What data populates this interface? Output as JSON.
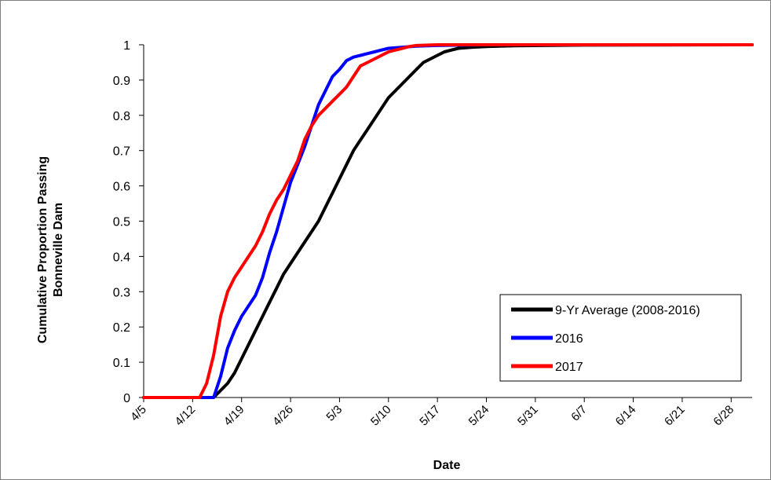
{
  "chart_data": {
    "type": "line",
    "xlabel": "Date",
    "ylabel_lines": [
      "Cumulative Proportion Passing",
      "Bonneville Dam"
    ],
    "x_tick_labels": [
      "4/5",
      "4/12",
      "4/19",
      "4/26",
      "5/3",
      "5/10",
      "5/17",
      "5/24",
      "5/31",
      "6/7",
      "6/14",
      "6/21",
      "6/28"
    ],
    "xlim": [
      "4/5",
      "7/1"
    ],
    "y_ticks": [
      "0",
      "0.1",
      "0.2",
      "0.3",
      "0.4",
      "0.5",
      "0.6",
      "0.7",
      "0.8",
      "0.9",
      "1"
    ],
    "ylim": [
      0,
      1
    ],
    "grid": false,
    "legend_position": "bottom-right",
    "series": [
      {
        "name": "9-Yr Average (2008-2016)",
        "color": "#000000",
        "x": [
          "4/5",
          "4/15",
          "4/16",
          "4/17",
          "4/18",
          "4/19",
          "4/20",
          "4/21",
          "4/22",
          "4/23",
          "4/24",
          "4/25",
          "4/26",
          "4/27",
          "4/28",
          "4/29",
          "4/30",
          "5/1",
          "5/2",
          "5/3",
          "5/4",
          "5/5",
          "5/6",
          "5/7",
          "5/8",
          "5/9",
          "5/10",
          "5/11",
          "5/12",
          "5/13",
          "5/14",
          "5/15",
          "5/16",
          "5/17",
          "5/18",
          "5/19",
          "5/20",
          "5/22",
          "5/24",
          "5/28",
          "6/7",
          "7/1"
        ],
        "y": [
          0,
          0,
          0.02,
          0.04,
          0.07,
          0.11,
          0.15,
          0.19,
          0.23,
          0.27,
          0.31,
          0.35,
          0.38,
          0.41,
          0.44,
          0.47,
          0.5,
          0.54,
          0.58,
          0.62,
          0.66,
          0.7,
          0.73,
          0.76,
          0.79,
          0.82,
          0.85,
          0.87,
          0.89,
          0.91,
          0.93,
          0.95,
          0.96,
          0.97,
          0.98,
          0.985,
          0.99,
          0.993,
          0.995,
          0.997,
          0.999,
          1
        ]
      },
      {
        "name": "2016",
        "color": "#0000ff",
        "x": [
          "4/5",
          "4/15",
          "4/16",
          "4/17",
          "4/18",
          "4/19",
          "4/20",
          "4/21",
          "4/22",
          "4/23",
          "4/24",
          "4/25",
          "4/26",
          "4/27",
          "4/28",
          "4/29",
          "4/30",
          "5/1",
          "5/2",
          "5/3",
          "5/4",
          "5/5",
          "5/6",
          "5/7",
          "5/8",
          "5/9",
          "5/10",
          "5/12",
          "5/14",
          "5/17",
          "5/24",
          "7/1"
        ],
        "y": [
          0,
          0,
          0.06,
          0.14,
          0.19,
          0.23,
          0.26,
          0.29,
          0.34,
          0.41,
          0.47,
          0.54,
          0.61,
          0.66,
          0.71,
          0.77,
          0.83,
          0.87,
          0.91,
          0.93,
          0.955,
          0.965,
          0.97,
          0.975,
          0.98,
          0.985,
          0.99,
          0.993,
          0.996,
          0.998,
          1,
          1
        ]
      },
      {
        "name": "2017",
        "color": "#ff0000",
        "x": [
          "4/5",
          "4/13",
          "4/14",
          "4/15",
          "4/16",
          "4/17",
          "4/18",
          "4/19",
          "4/20",
          "4/21",
          "4/22",
          "4/23",
          "4/24",
          "4/25",
          "4/26",
          "4/27",
          "4/28",
          "4/29",
          "4/30",
          "5/1",
          "5/2",
          "5/3",
          "5/4",
          "5/5",
          "5/6",
          "5/7",
          "5/8",
          "5/9",
          "5/10",
          "5/11",
          "5/12",
          "5/13",
          "5/14",
          "5/17",
          "5/24",
          "7/1"
        ],
        "y": [
          0,
          0,
          0.04,
          0.12,
          0.23,
          0.3,
          0.34,
          0.37,
          0.4,
          0.43,
          0.47,
          0.52,
          0.56,
          0.59,
          0.63,
          0.67,
          0.73,
          0.77,
          0.8,
          0.82,
          0.84,
          0.86,
          0.88,
          0.91,
          0.94,
          0.95,
          0.96,
          0.97,
          0.98,
          0.985,
          0.99,
          0.995,
          0.998,
          1,
          1,
          1
        ]
      }
    ]
  }
}
